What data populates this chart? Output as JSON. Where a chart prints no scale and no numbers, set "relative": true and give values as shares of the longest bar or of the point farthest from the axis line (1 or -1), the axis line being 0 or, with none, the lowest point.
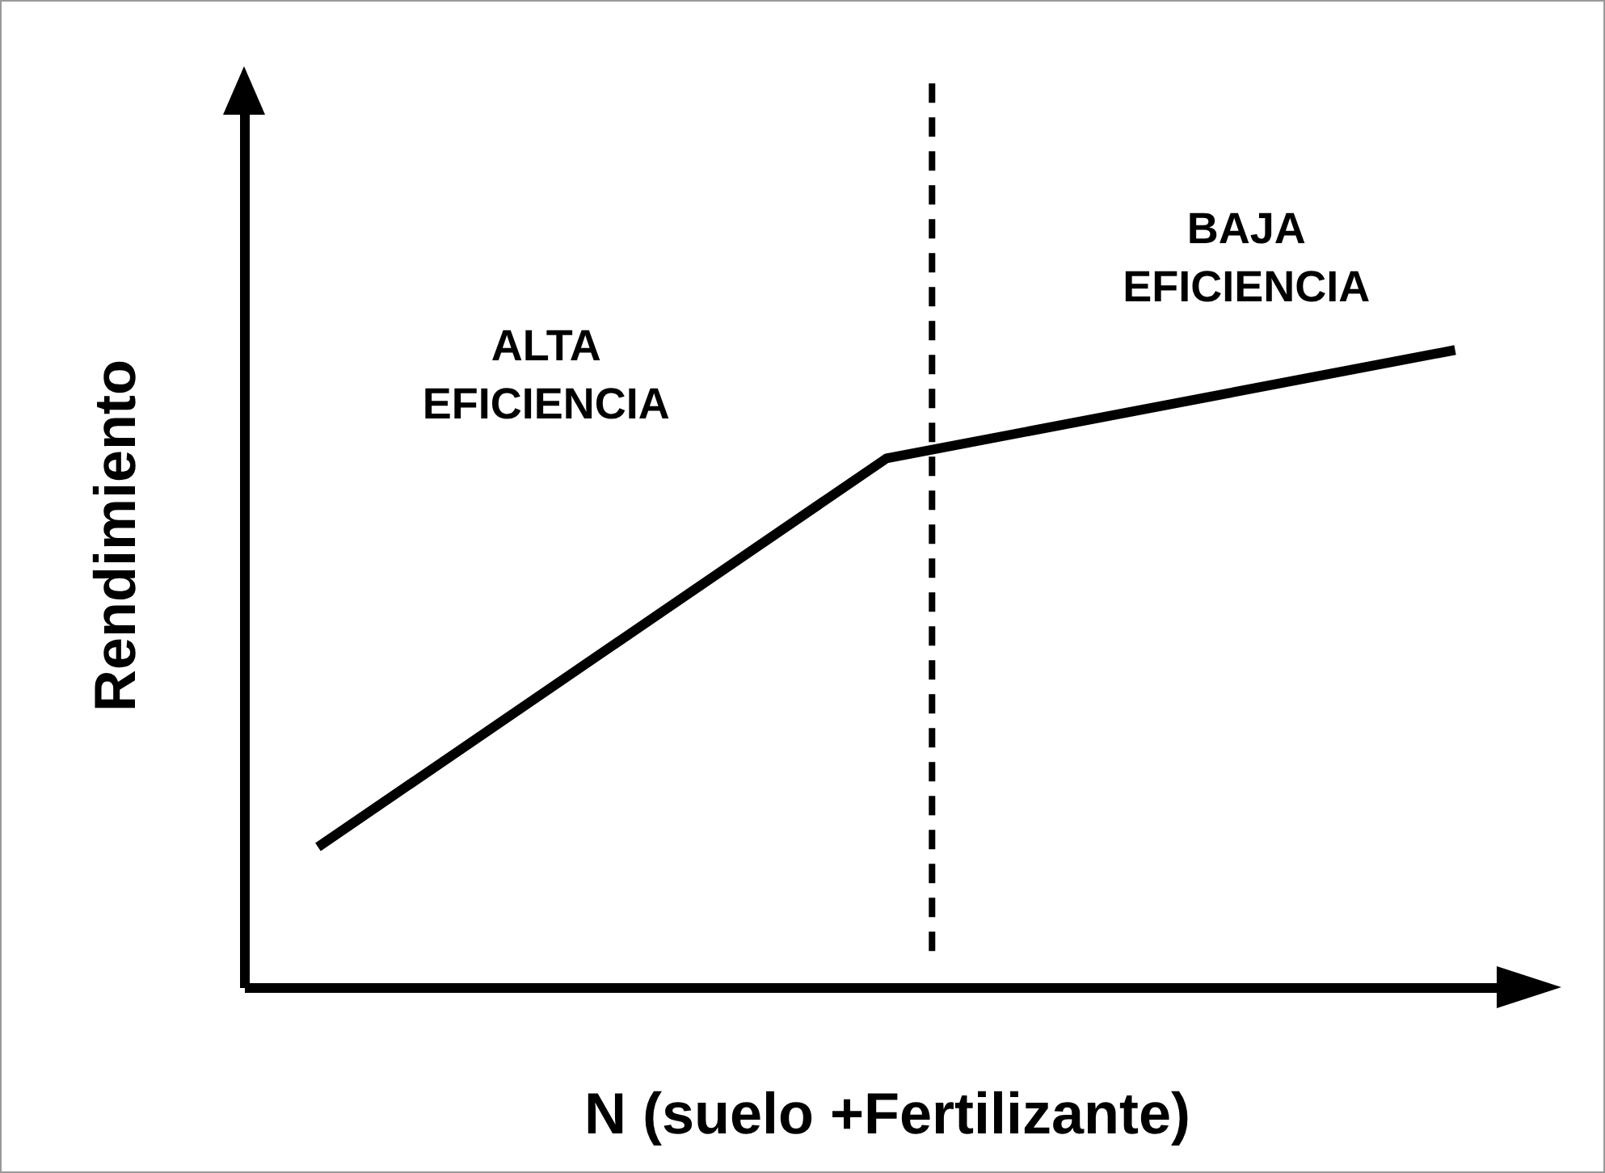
{
  "chart_data": {
    "type": "line",
    "relative": true,
    "xlabel": "N (suelo +Fertilizante)",
    "ylabel": "Rendimiento",
    "categories": [
      null,
      null,
      null
    ],
    "marker": "none",
    "line_style": "solid",
    "series": [
      {
        "color": "#000000",
        "values": [
          0.22,
          0.83,
          1
        ]
      }
    ],
    "ref_lines": [
      {
        "axis": "x",
        "color": "#000000",
        "line_style": "dashed"
      }
    ],
    "annotations": [
      "ALTA EFICIENCIA",
      "BAJA EFICIENCIA"
    ]
  }
}
